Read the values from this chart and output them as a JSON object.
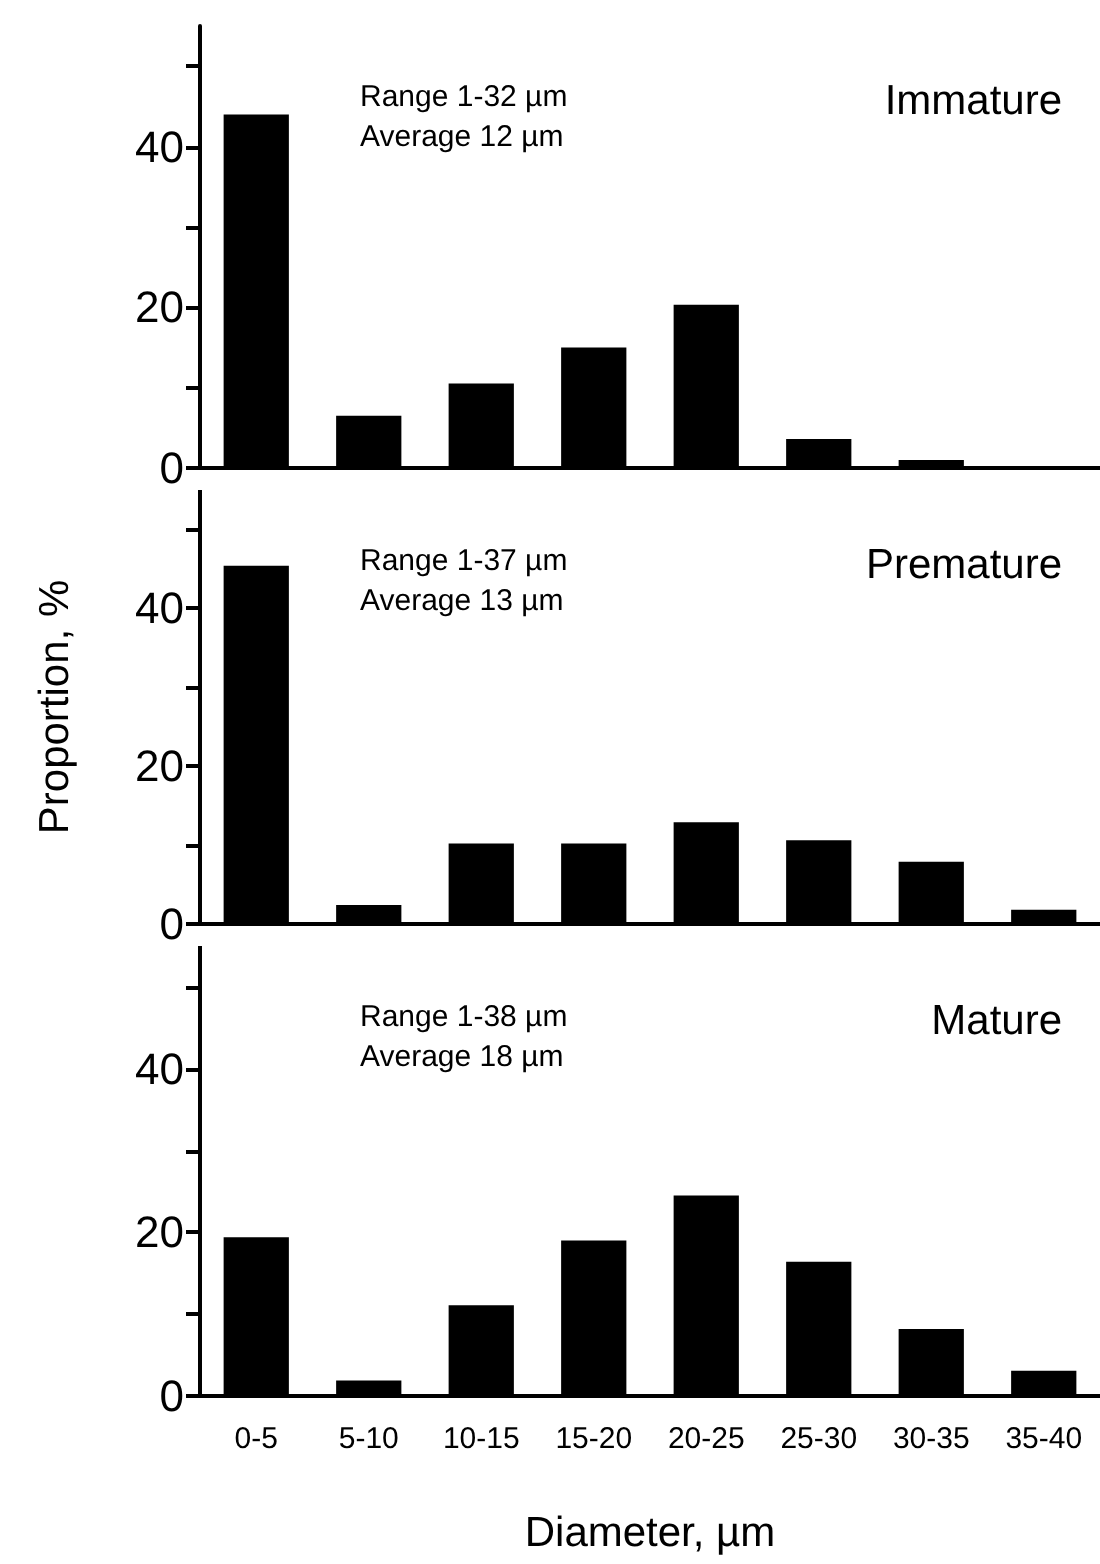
{
  "chart_data": [
    {
      "type": "bar",
      "title": "Immature",
      "annotations": [
        "Range 1-32 µm",
        "Average 12 µm"
      ],
      "categories": [
        null,
        null,
        null,
        null,
        null,
        null,
        null,
        null
      ],
      "values": [
        44,
        6.5,
        10.5,
        15,
        20.3,
        3.6,
        1,
        0
      ],
      "color": "#000000",
      "ylim": [
        0,
        55
      ],
      "yticks": [
        0,
        {
          "value": 10,
          "label": null
        },
        20,
        {
          "value": 30,
          "label": null
        },
        40,
        {
          "value": 50,
          "label": null
        }
      ]
    },
    {
      "type": "bar",
      "title": "Premature",
      "ylabel": "Proportion, %",
      "annotations": [
        "Range 1-37 µm",
        "Average 13 µm"
      ],
      "categories": [
        null,
        null,
        null,
        null,
        null,
        null,
        null,
        null
      ],
      "values": [
        45.4,
        2.4,
        10.2,
        10.2,
        12.9,
        10.6,
        7.9,
        1.8
      ],
      "color": "#000000",
      "ylim": [
        0,
        55
      ],
      "yticks": [
        0,
        {
          "value": 10,
          "label": null
        },
        20,
        {
          "value": 30,
          "label": null
        },
        40,
        {
          "value": 50,
          "label": null
        }
      ]
    },
    {
      "type": "bar",
      "title": "Mature",
      "xlabel": "Diameter, µm",
      "annotations": [
        "Range 1-38 µm",
        "Average 18 µm"
      ],
      "categories": [
        "0-5",
        "5-10",
        "10-15",
        "15-20",
        "20-25",
        "25-30",
        "30-35",
        "35-40"
      ],
      "values": [
        19.4,
        1.9,
        11.1,
        19,
        24.5,
        16.4,
        8.2,
        3.1
      ],
      "color": "#000000",
      "ylim": [
        0,
        55
      ],
      "yticks": [
        0,
        {
          "value": 10,
          "label": null
        },
        20,
        {
          "value": 30,
          "label": null
        },
        40,
        {
          "value": 50,
          "label": null
        }
      ]
    }
  ]
}
